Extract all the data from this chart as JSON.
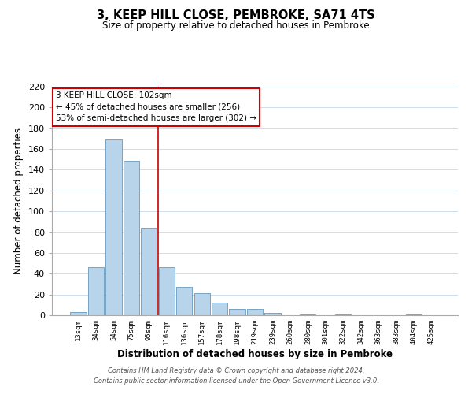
{
  "title": "3, KEEP HILL CLOSE, PEMBROKE, SA71 4TS",
  "subtitle": "Size of property relative to detached houses in Pembroke",
  "xlabel": "Distribution of detached houses by size in Pembroke",
  "ylabel": "Number of detached properties",
  "bar_labels": [
    "13sqm",
    "34sqm",
    "54sqm",
    "75sqm",
    "95sqm",
    "116sqm",
    "136sqm",
    "157sqm",
    "178sqm",
    "198sqm",
    "219sqm",
    "239sqm",
    "260sqm",
    "280sqm",
    "301sqm",
    "322sqm",
    "342sqm",
    "363sqm",
    "383sqm",
    "404sqm",
    "425sqm"
  ],
  "bar_values": [
    3,
    46,
    169,
    149,
    84,
    46,
    27,
    21,
    12,
    6,
    6,
    2,
    0,
    1,
    0,
    1,
    0,
    0,
    0,
    1,
    0
  ],
  "bar_color": "#b8d4ea",
  "bar_edge_color": "#6699bb",
  "vline_x": 4.5,
  "vline_color": "#cc0000",
  "ylim": [
    0,
    220
  ],
  "yticks": [
    0,
    20,
    40,
    60,
    80,
    100,
    120,
    140,
    160,
    180,
    200,
    220
  ],
  "annotation_title": "3 KEEP HILL CLOSE: 102sqm",
  "annotation_line1": "← 45% of detached houses are smaller (256)",
  "annotation_line2": "53% of semi-detached houses are larger (302) →",
  "annotation_box_color": "#ffffff",
  "annotation_box_edge": "#cc0000",
  "footer_line1": "Contains HM Land Registry data © Crown copyright and database right 2024.",
  "footer_line2": "Contains public sector information licensed under the Open Government Licence v3.0.",
  "grid_color": "#ccddee",
  "background_color": "#ffffff"
}
